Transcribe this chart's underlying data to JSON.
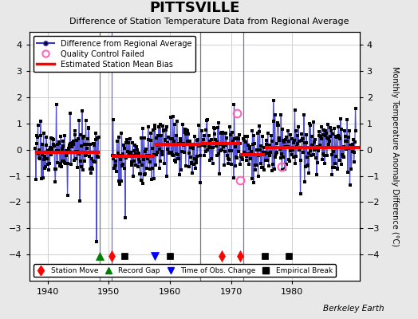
{
  "title": "PITTSVILLE",
  "subtitle": "Difference of Station Temperature Data from Regional Average",
  "ylabel": "Monthly Temperature Anomaly Difference (°C)",
  "xlim": [
    1937.0,
    1991.0
  ],
  "ylim": [
    -5.0,
    4.5
  ],
  "yticks": [
    -4,
    -3,
    -2,
    -1,
    0,
    1,
    2,
    3,
    4
  ],
  "xticks": [
    1940,
    1950,
    1960,
    1970,
    1980
  ],
  "background_color": "#e8e8e8",
  "plot_bg_color": "#ffffff",
  "grid_color": "#cccccc",
  "line_color": "#3333cc",
  "dot_color": "#000000",
  "bias_color": "#ff0000",
  "qc_color": "#ff66bb",
  "watermark": "Berkeley Earth",
  "gap_start": 1948.5,
  "gap_end": 1950.5,
  "vertical_lines": [
    1948.5,
    1950.5,
    1965.0,
    1972.0
  ],
  "vertical_line_color": "#777799",
  "bias_segments": [
    {
      "start": 1938.0,
      "end": 1948.5,
      "bias": -0.1
    },
    {
      "start": 1950.5,
      "end": 1957.5,
      "bias": -0.25
    },
    {
      "start": 1957.5,
      "end": 1965.0,
      "bias": 0.2
    },
    {
      "start": 1965.0,
      "end": 1971.5,
      "bias": 0.25
    },
    {
      "start": 1971.5,
      "end": 1975.5,
      "bias": -0.2
    },
    {
      "start": 1975.5,
      "end": 1991.0,
      "bias": 0.1
    }
  ],
  "station_moves": [
    1950.5,
    1968.5,
    1971.5
  ],
  "record_gaps": [
    1948.5
  ],
  "time_obs_changes": [
    1957.5
  ],
  "empirical_breaks": [
    1952.5,
    1960.0,
    1975.5,
    1979.5
  ],
  "qc_failed_times": [
    1971.0,
    1971.5,
    1978.25
  ],
  "qc_failed_vals": [
    1.4,
    -1.15,
    -0.65
  ],
  "marker_y": -4.05,
  "seg1_start": 1938.0,
  "seg1_end": 1948.4,
  "seg2_start": 1950.6,
  "seg2_end": 1990.5
}
